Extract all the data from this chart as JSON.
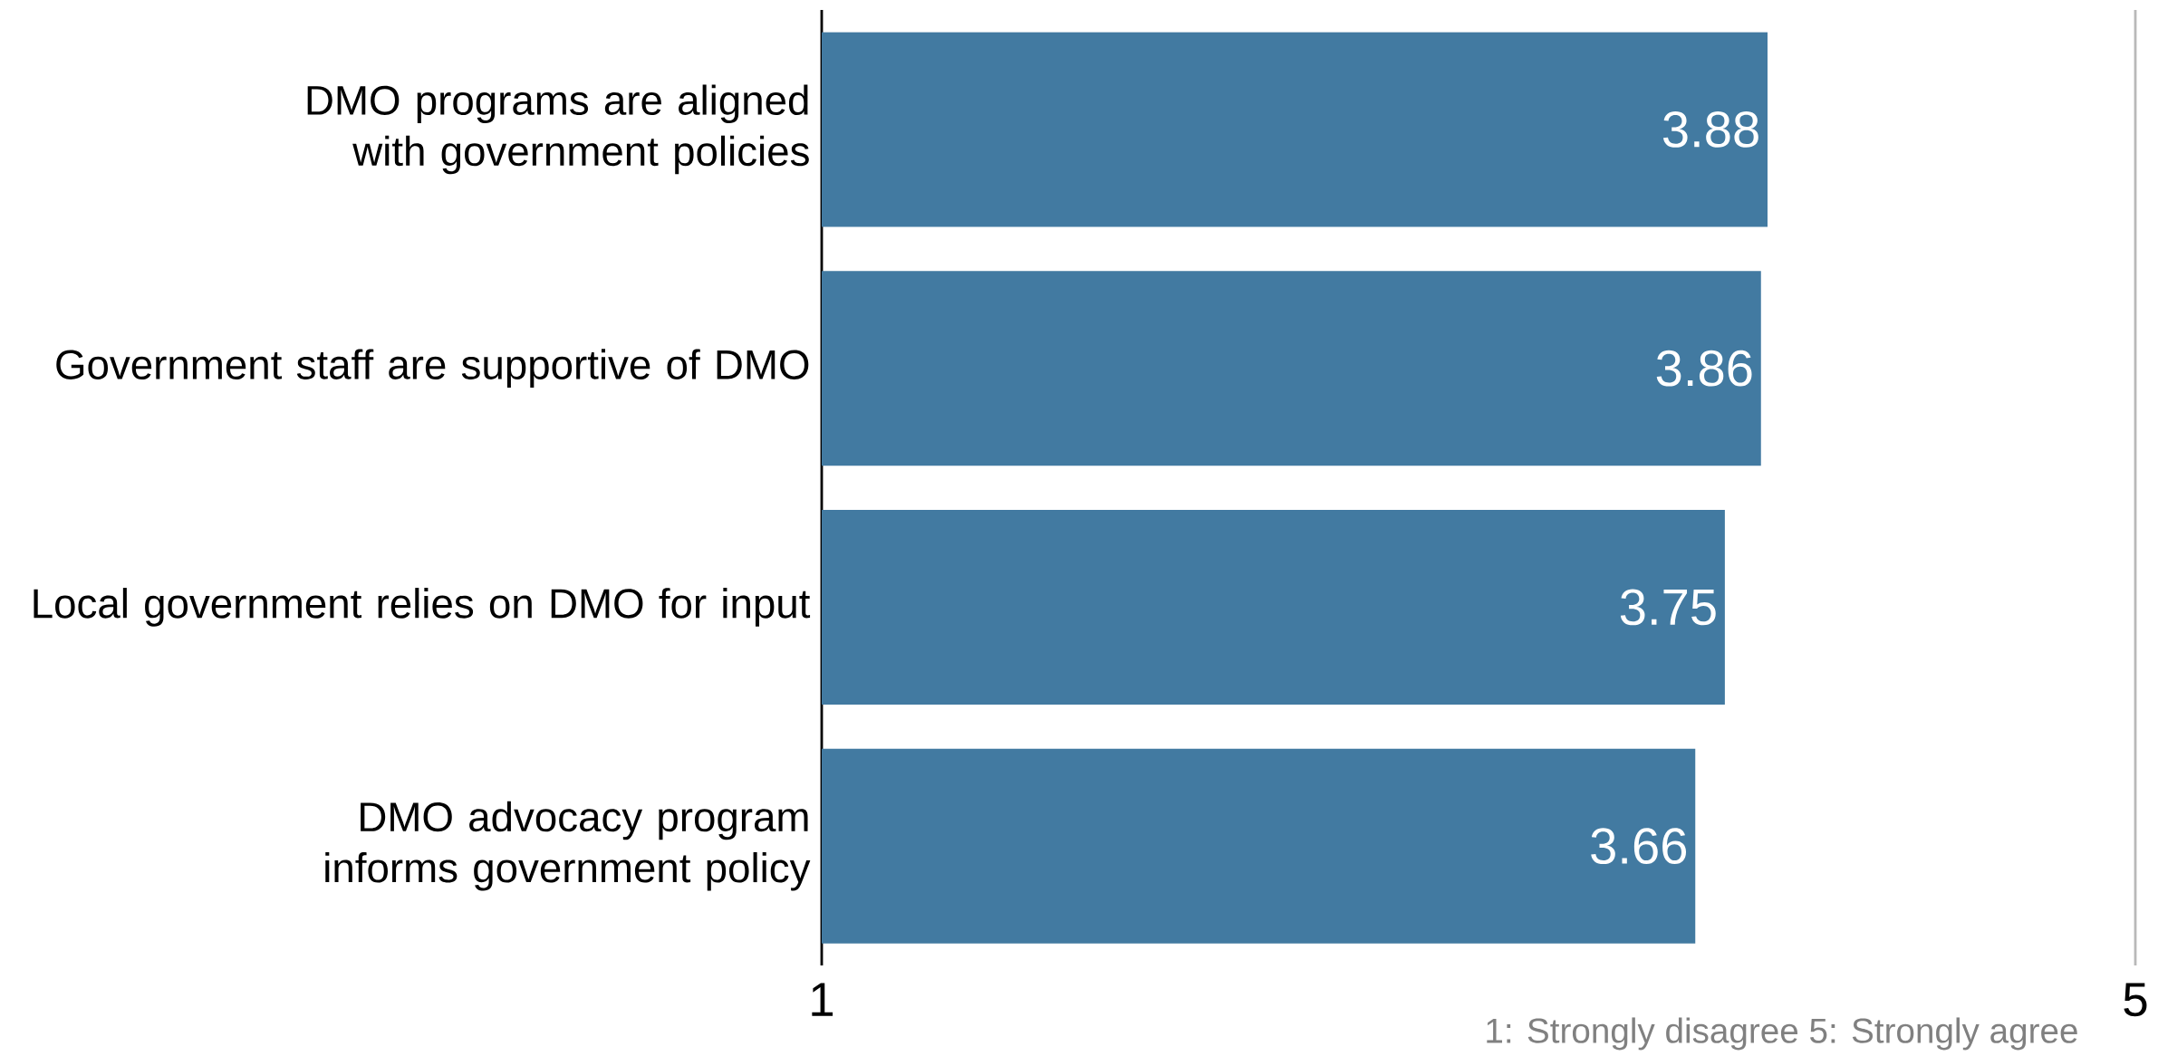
{
  "chart_data": {
    "type": "bar",
    "orientation": "horizontal",
    "categories": [
      "DMO programs are aligned with government policies",
      "Government staff are supportive of DMO",
      "Local government relies on DMO for input",
      "DMO advocacy program informs government policy"
    ],
    "values": [
      3.88,
      3.86,
      3.75,
      3.66
    ],
    "color": "#427aa1",
    "xlim": [
      1,
      5
    ],
    "xticks": [
      1,
      5
    ],
    "data_labels": true,
    "annotations": [
      "1: Strongly disagree  5: Strongly agree"
    ]
  }
}
